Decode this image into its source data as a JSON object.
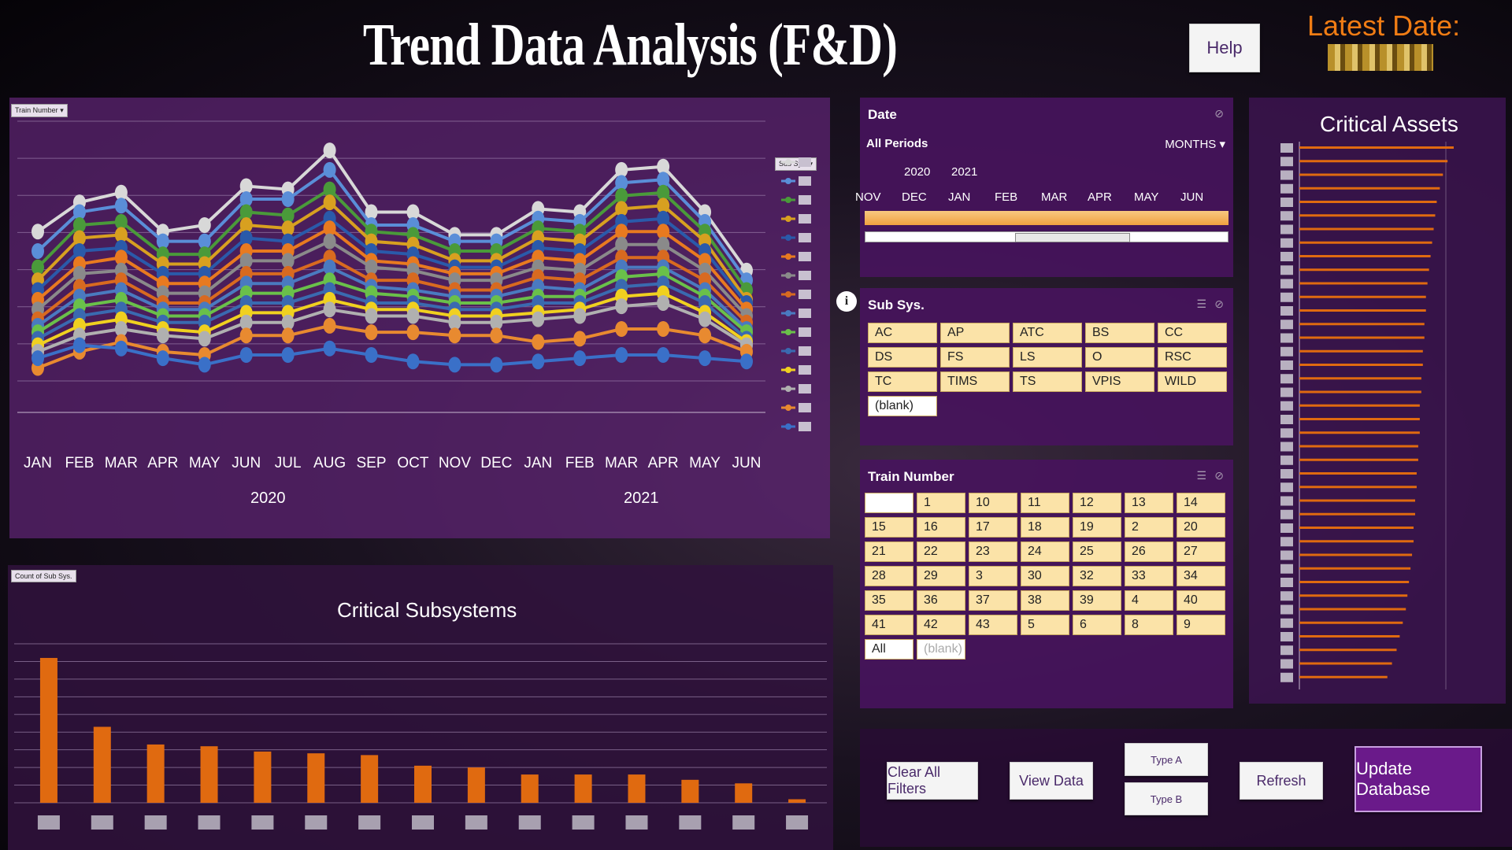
{
  "header": {
    "title": "Trend Data Analysis (F&D)",
    "help_label": "Help",
    "latest_date_label": "Latest Date:"
  },
  "trend_chart": {
    "filter_button": "Train Number",
    "legend_button": "Sub Sys.",
    "year_labels": [
      "2020",
      "2021"
    ],
    "chart_data": {
      "type": "line",
      "categories": [
        "JAN",
        "FEB",
        "MAR",
        "APR",
        "MAY",
        "JUN",
        "JUL",
        "AUG",
        "SEP",
        "OCT",
        "NOV",
        "DEC",
        "JAN",
        "FEB",
        "MAR",
        "APR",
        "MAY",
        "JUN"
      ],
      "series": [
        {
          "color": "#d8d8d8",
          "values": [
            92,
            110,
            116,
            92,
            96,
            120,
            118,
            142,
            104,
            104,
            90,
            90,
            106,
            104,
            130,
            132,
            104,
            68
          ]
        },
        {
          "color": "#5a8ed8",
          "values": [
            80,
            104,
            108,
            86,
            86,
            112,
            112,
            130,
            96,
            96,
            86,
            86,
            100,
            98,
            122,
            124,
            98,
            62
          ]
        },
        {
          "color": "#4a9a3a",
          "values": [
            70,
            96,
            98,
            78,
            78,
            104,
            102,
            118,
            92,
            90,
            80,
            80,
            94,
            92,
            114,
            116,
            92,
            56
          ]
        },
        {
          "color": "#d8a020",
          "values": [
            62,
            88,
            90,
            72,
            72,
            96,
            94,
            110,
            86,
            84,
            74,
            74,
            88,
            86,
            106,
            108,
            86,
            50
          ]
        },
        {
          "color": "#2a5aaa",
          "values": [
            56,
            80,
            82,
            66,
            66,
            88,
            86,
            100,
            80,
            78,
            70,
            70,
            82,
            80,
            98,
            100,
            80,
            48
          ]
        },
        {
          "color": "#e87a20",
          "values": [
            50,
            72,
            76,
            60,
            60,
            80,
            80,
            94,
            74,
            72,
            66,
            66,
            76,
            74,
            92,
            92,
            74,
            44
          ]
        },
        {
          "color": "#8a8a8a",
          "values": [
            44,
            66,
            68,
            54,
            54,
            74,
            74,
            86,
            70,
            68,
            62,
            62,
            70,
            68,
            84,
            84,
            68,
            40
          ]
        },
        {
          "color": "#d86a20",
          "values": [
            38,
            58,
            62,
            48,
            48,
            66,
            66,
            76,
            62,
            62,
            56,
            56,
            64,
            62,
            76,
            76,
            62,
            36
          ]
        },
        {
          "color": "#4a7ac0",
          "values": [
            34,
            52,
            56,
            44,
            44,
            60,
            60,
            70,
            58,
            56,
            52,
            52,
            58,
            56,
            70,
            70,
            56,
            32
          ]
        },
        {
          "color": "#6ac04a",
          "values": [
            30,
            46,
            50,
            40,
            40,
            54,
            54,
            62,
            54,
            52,
            48,
            48,
            52,
            52,
            64,
            66,
            52,
            30
          ]
        },
        {
          "color": "#3a6ab0",
          "values": [
            26,
            40,
            44,
            36,
            36,
            48,
            48,
            56,
            48,
            48,
            44,
            44,
            48,
            48,
            58,
            60,
            48,
            26
          ]
        },
        {
          "color": "#f0d020",
          "values": [
            22,
            34,
            38,
            32,
            30,
            42,
            42,
            50,
            44,
            44,
            40,
            40,
            42,
            44,
            52,
            54,
            42,
            24
          ]
        },
        {
          "color": "#b0b0b0",
          "values": [
            18,
            28,
            32,
            28,
            26,
            36,
            36,
            44,
            40,
            40,
            36,
            36,
            38,
            40,
            46,
            48,
            38,
            22
          ]
        },
        {
          "color": "#e88a30",
          "values": [
            8,
            18,
            24,
            18,
            16,
            28,
            28,
            34,
            30,
            30,
            28,
            28,
            24,
            26,
            32,
            32,
            28,
            18
          ]
        },
        {
          "color": "#3a70c8",
          "values": [
            14,
            22,
            20,
            14,
            10,
            16,
            16,
            20,
            16,
            12,
            10,
            10,
            12,
            14,
            16,
            16,
            14,
            12
          ]
        }
      ],
      "ylim": [
        0,
        160
      ],
      "grid": true,
      "legend": "right"
    }
  },
  "subsystems_chart": {
    "filter_button": "Count of Sub Sys.",
    "chart_data": {
      "type": "bar",
      "title": "Critical Subsystems",
      "values": [
        82,
        43,
        33,
        32,
        29,
        28,
        27,
        21,
        20,
        16,
        16,
        16,
        13,
        11,
        2
      ],
      "color": "#e06a10",
      "ylim": [
        0,
        90
      ],
      "grid": true
    }
  },
  "date_slicer": {
    "header": "Date",
    "period": "All Periods",
    "unit": "MONTHS",
    "years": [
      "2020",
      "2021"
    ],
    "months": [
      "NOV",
      "DEC",
      "JAN",
      "FEB",
      "MAR",
      "APR",
      "MAY",
      "JUN"
    ]
  },
  "subsys_slicer": {
    "header": "Sub Sys.",
    "items": [
      "AC",
      "AP",
      "ATC",
      "BS",
      "CC",
      "DS",
      "FS",
      "LS",
      "O",
      "RSC",
      "TC",
      "TIMS",
      "TS",
      "VPIS",
      "WILD"
    ],
    "blank": "(blank)"
  },
  "train_slicer": {
    "header": "Train Number",
    "items": [
      "",
      "1",
      "10",
      "11",
      "12",
      "13",
      "14",
      "15",
      "16",
      "17",
      "18",
      "19",
      "2",
      "20",
      "21",
      "22",
      "23",
      "24",
      "25",
      "26",
      "27",
      "28",
      "29",
      "3",
      "30",
      "32",
      "33",
      "34",
      "35",
      "36",
      "37",
      "38",
      "39",
      "4",
      "40",
      "41",
      "42",
      "43",
      "5",
      "6",
      "8",
      "9"
    ],
    "all_label": "All",
    "blank_label": "(blank)"
  },
  "critical_assets": {
    "title": "Critical Assets",
    "chart_data": {
      "type": "bar",
      "orientation": "horizontal",
      "values": [
        100,
        96,
        93,
        91,
        89,
        88,
        87,
        86,
        85,
        84,
        83,
        82,
        82,
        81,
        81,
        80,
        80,
        79,
        79,
        78,
        78,
        78,
        77,
        77,
        76,
        76,
        75,
        75,
        74,
        74,
        73,
        72,
        71,
        70,
        69,
        67,
        65,
        63,
        60,
        57
      ],
      "color": "#e06a10"
    }
  },
  "actions": {
    "clear_label": "Clear All Filters",
    "view_label": "View Data",
    "type_a_label": "Type A",
    "type_b_label": "Type B",
    "refresh_label": "Refresh",
    "update_label": "Update Database"
  }
}
